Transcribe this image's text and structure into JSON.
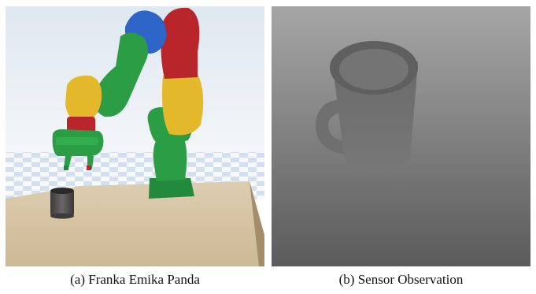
{
  "figure": {
    "subfigures": [
      {
        "label": "(a)",
        "caption": "Franka Emika Panda",
        "content": "simulated-robot-arm-scene"
      },
      {
        "label": "(b)",
        "caption": "Sensor Observation",
        "content": "depth-image-of-mug"
      }
    ]
  },
  "colors": {
    "sky_top": "#dfe7f0",
    "sky_bottom": "#f4f6fa",
    "checker_blue": "#b9cfe6",
    "checker_white": "#f2f4f8",
    "table_top": "#d8c6a6",
    "robot_green": "#2a9d45",
    "robot_yellow": "#e3b82a",
    "robot_red": "#b8262b",
    "robot_blue": "#2e65c9",
    "depth_light": "#a4a4a4",
    "depth_dark": "#5a5a5a"
  }
}
